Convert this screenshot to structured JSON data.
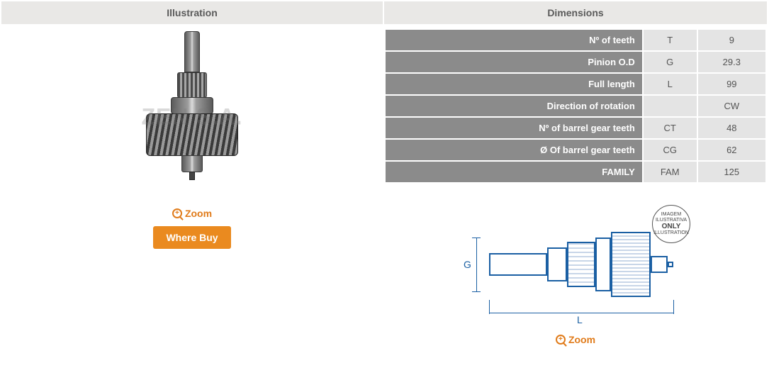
{
  "sections": {
    "illustration_title": "Illustration",
    "dimensions_title": "Dimensions"
  },
  "watermark_text": "ZEN S.A.",
  "zoom_label": "Zoom",
  "where_buy_label": "Where Buy",
  "accent_color": "#e07b1a",
  "button_color": "#ea8a1f",
  "header_bg": "#e9e8e6",
  "row_label_bg": "#8b8b8b",
  "row_value_bg": "#e4e4e4",
  "schematic_line_color": "#1a5fa3",
  "dimensions": {
    "rows": [
      {
        "label": "Nº of teeth",
        "symbol": "T",
        "value": "9"
      },
      {
        "label": "Pinion O.D",
        "symbol": "G",
        "value": "29.3"
      },
      {
        "label": "Full length",
        "symbol": "L",
        "value": "99"
      },
      {
        "label": "Direction of rotation",
        "symbol": "",
        "value": "CW"
      },
      {
        "label": "Nº of barrel gear teeth",
        "symbol": "CT",
        "value": "48"
      },
      {
        "label": "Ø Of barrel gear teeth",
        "symbol": "CG",
        "value": "62"
      },
      {
        "label": "FAMILY",
        "symbol": "FAM",
        "value": "125"
      }
    ]
  },
  "schematic": {
    "g_label": "G",
    "l_label": "L",
    "badge_line1": "IMAGEM",
    "badge_line2": "ILUSTRATIVA",
    "badge_line3": "ONLY",
    "badge_line4": "ILLUSTRATION"
  }
}
